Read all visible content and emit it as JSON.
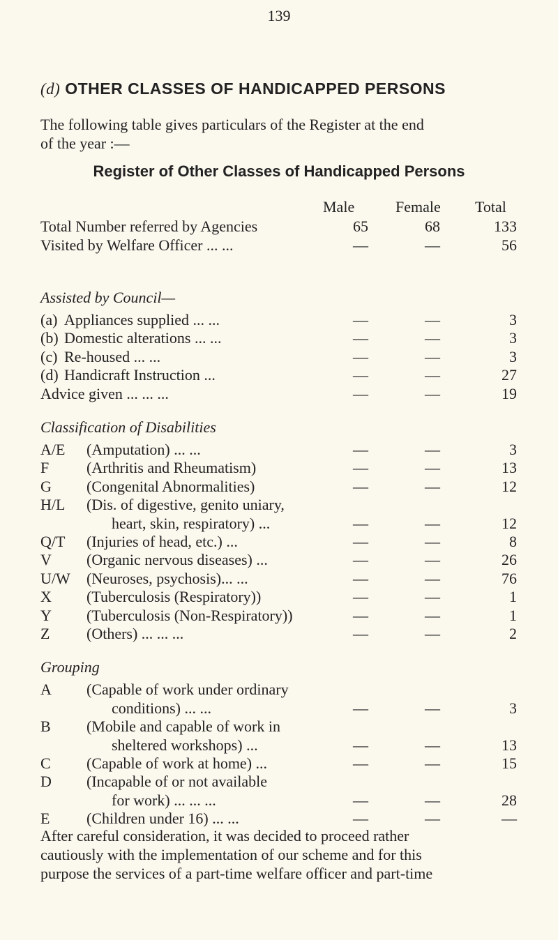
{
  "page_number": "139",
  "heading": {
    "marker": "(d)",
    "text": "OTHER CLASSES OF HANDICAPPED PERSONS"
  },
  "intro": [
    "The following table gives particulars of the Register at the end",
    "of the year :—"
  ],
  "table_title": "Register of Other Classes of Handicapped Persons",
  "columns": [
    "Male",
    "Female",
    "Total"
  ],
  "general_rows": [
    {
      "code": "",
      "label": "Total Number referred by Agencies",
      "male": "65",
      "female": "68",
      "total": "133"
    },
    {
      "code": "",
      "label": "Visited by Welfare Officer ... ...",
      "male": "—",
      "female": "—",
      "total": "56"
    }
  ],
  "sections": [
    {
      "title": "Assisted by Council—",
      "rows": [
        {
          "code": "(a)",
          "label": "Appliances supplied ... ...",
          "male": "—",
          "female": "—",
          "total": "3"
        },
        {
          "code": "(b)",
          "label": "Domestic alterations ... ...",
          "male": "—",
          "female": "—",
          "total": "3"
        },
        {
          "code": "(c)",
          "label": "Re-housed ... ...",
          "male": "—",
          "female": "—",
          "total": "3"
        },
        {
          "code": "(d)",
          "label": "Handicraft Instruction ...",
          "male": "—",
          "female": "—",
          "total": "27"
        },
        {
          "code": "",
          "label": "Advice given ... ... ...",
          "male": "—",
          "female": "—",
          "total": "19"
        }
      ]
    },
    {
      "title": "Classification of Disabilities",
      "rows": [
        {
          "code": "A/E",
          "label": "(Amputation) ... ...",
          "male": "—",
          "female": "—",
          "total": "3"
        },
        {
          "code": "F",
          "label": "(Arthritis and Rheumatism)",
          "male": "—",
          "female": "—",
          "total": "13"
        },
        {
          "code": "G",
          "label": "(Congenital Abnormalities)",
          "male": "—",
          "female": "—",
          "total": "12"
        },
        {
          "code": "H/L",
          "label": "(Dis. of digestive, genito uniary,",
          "male": "",
          "female": "",
          "total": ""
        },
        {
          "code": "",
          "label": "heart, skin, respiratory) ...",
          "indent": true,
          "male": "—",
          "female": "—",
          "total": "12"
        },
        {
          "code": "Q/T",
          "label": "(Injuries of head, etc.) ...",
          "male": "—",
          "female": "—",
          "total": "8"
        },
        {
          "code": "V",
          "label": "(Organic nervous diseases) ...",
          "male": "—",
          "female": "—",
          "total": "26"
        },
        {
          "code": "U/W",
          "label": "(Neuroses, psychosis)... ...",
          "male": "—",
          "female": "—",
          "total": "76"
        },
        {
          "code": "X",
          "label": "(Tuberculosis (Respiratory))",
          "male": "—",
          "female": "—",
          "total": "1"
        },
        {
          "code": "Y",
          "label": "(Tuberculosis (Non-Respiratory))",
          "male": "—",
          "female": "—",
          "total": "1"
        },
        {
          "code": "Z",
          "label": "(Others) ... ... ...",
          "male": "—",
          "female": "—",
          "total": "2"
        }
      ]
    },
    {
      "title": "Grouping",
      "rows": [
        {
          "code": "A",
          "label": "(Capable of work under ordinary",
          "male": "",
          "female": "",
          "total": ""
        },
        {
          "code": "",
          "label": "conditions) ... ...",
          "indent": true,
          "male": "—",
          "female": "—",
          "total": "3"
        },
        {
          "code": "B",
          "label": "(Mobile and capable of work in",
          "male": "",
          "female": "",
          "total": ""
        },
        {
          "code": "",
          "label": "sheltered workshops) ...",
          "indent": true,
          "male": "—",
          "female": "—",
          "total": "13"
        },
        {
          "code": "C",
          "label": "(Capable of work at home) ...",
          "male": "—",
          "female": "—",
          "total": "15"
        },
        {
          "code": "D",
          "label": "(Incapable of or not available",
          "male": "",
          "female": "",
          "total": ""
        },
        {
          "code": "",
          "label": "for work) ... ... ...",
          "indent": true,
          "male": "—",
          "female": "—",
          "total": "28"
        },
        {
          "code": "E",
          "label": "(Children under 16) ... ...",
          "male": "—",
          "female": "—",
          "total": "—"
        }
      ]
    }
  ],
  "closing": [
    "After careful consideration, it was decided to proceed rather",
    "cautiously with the implementation of our scheme and for this",
    "purpose the services of a part-time welfare officer and part-time"
  ]
}
